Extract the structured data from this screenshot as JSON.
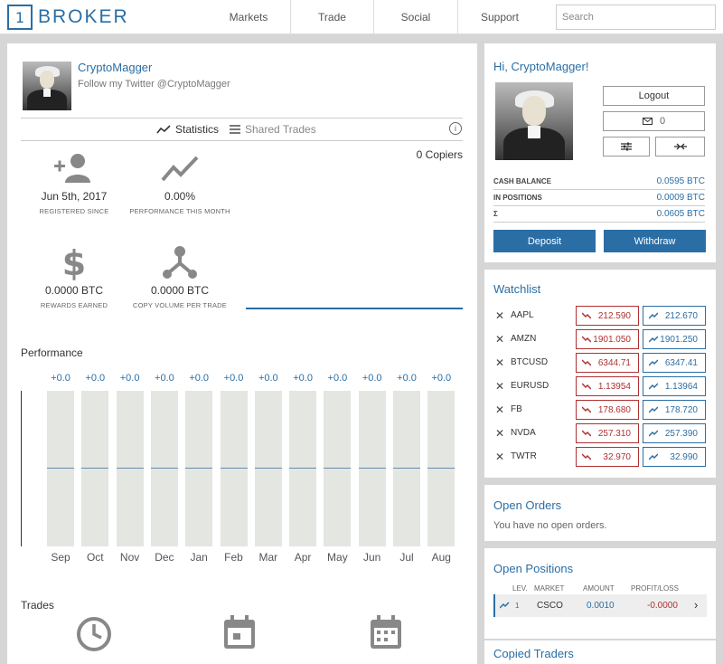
{
  "brand": {
    "box": "1",
    "name": "BROKER"
  },
  "nav": [
    {
      "label": "Markets"
    },
    {
      "label": "Trade"
    },
    {
      "label": "Social"
    },
    {
      "label": "Support"
    }
  ],
  "search": {
    "placeholder": "Search",
    "value": ""
  },
  "profile": {
    "name": "CryptoMagger",
    "tagline": "Follow my Twitter @CryptoMagger",
    "tabs": {
      "statistics": "Statistics",
      "shared_trades": "Shared Trades"
    },
    "info": "i",
    "copiers": "0 Copiers",
    "stats": {
      "registered": {
        "value": "Jun 5th, 2017",
        "label": "REGISTERED SINCE"
      },
      "performance": {
        "value": "0.00%",
        "label": "PERFORMANCE THIS MONTH"
      },
      "rewards": {
        "value": "0.0000 BTC",
        "label": "REWARDS EARNED"
      },
      "copy_volume": {
        "value": "0.0000 BTC",
        "label": "COPY VOLUME PER TRADE"
      }
    },
    "performance_title": "Performance",
    "trades_title": "Trades"
  },
  "chart_data": {
    "type": "bar",
    "title": "Performance",
    "categories": [
      "Sep",
      "Oct",
      "Nov",
      "Dec",
      "Jan",
      "Feb",
      "Mar",
      "Apr",
      "May",
      "Jun",
      "Jul",
      "Aug"
    ],
    "values": [
      0,
      0,
      0,
      0,
      0,
      0,
      0,
      0,
      0,
      0,
      0,
      0
    ],
    "data_labels": [
      "+0.0",
      "+0.0",
      "+0.0",
      "+0.0",
      "+0.0",
      "+0.0",
      "+0.0",
      "+0.0",
      "+0.0",
      "+0.0",
      "+0.0",
      "+0.0"
    ]
  },
  "account": {
    "greeting": "Hi, CryptoMagger!",
    "logout": "Logout",
    "messages_count": "0",
    "balances": [
      {
        "label": "CASH BALANCE",
        "value": "0.0595 BTC"
      },
      {
        "label": "IN POSITIONS",
        "value": "0.0009 BTC"
      },
      {
        "label": "Σ",
        "value": "0.0605 BTC"
      }
    ],
    "deposit": "Deposit",
    "withdraw": "Withdraw"
  },
  "watchlist": {
    "title": "Watchlist",
    "items": [
      {
        "symbol": "AAPL",
        "bid": "212.590",
        "ask": "212.670"
      },
      {
        "symbol": "AMZN",
        "bid": "1901.050",
        "ask": "1901.250"
      },
      {
        "symbol": "BTCUSD",
        "bid": "6344.71",
        "ask": "6347.41"
      },
      {
        "symbol": "EURUSD",
        "bid": "1.13954",
        "ask": "1.13964"
      },
      {
        "symbol": "FB",
        "bid": "178.680",
        "ask": "178.720"
      },
      {
        "symbol": "NVDA",
        "bid": "257.310",
        "ask": "257.390"
      },
      {
        "symbol": "TWTR",
        "bid": "32.970",
        "ask": "32.990"
      }
    ],
    "remove_glyph": "✕",
    "bid_color": "#b03030",
    "ask_color": "#2a6ea5"
  },
  "open_orders": {
    "title": "Open Orders",
    "empty": "You have no open orders."
  },
  "open_positions": {
    "title": "Open Positions",
    "columns": {
      "lev": "LEV.",
      "market": "MARKET",
      "amount": "AMOUNT",
      "pl": "PROFIT/LOSS"
    },
    "rows": [
      {
        "lev": "1",
        "market": "CSCO",
        "amount": "0.0010",
        "pl": "-0.0000"
      }
    ]
  },
  "copied_traders": {
    "title": "Copied Traders"
  },
  "colors": {
    "accent": "#2a6ea5",
    "negative": "#b03030",
    "background": "#d6d6d6"
  }
}
